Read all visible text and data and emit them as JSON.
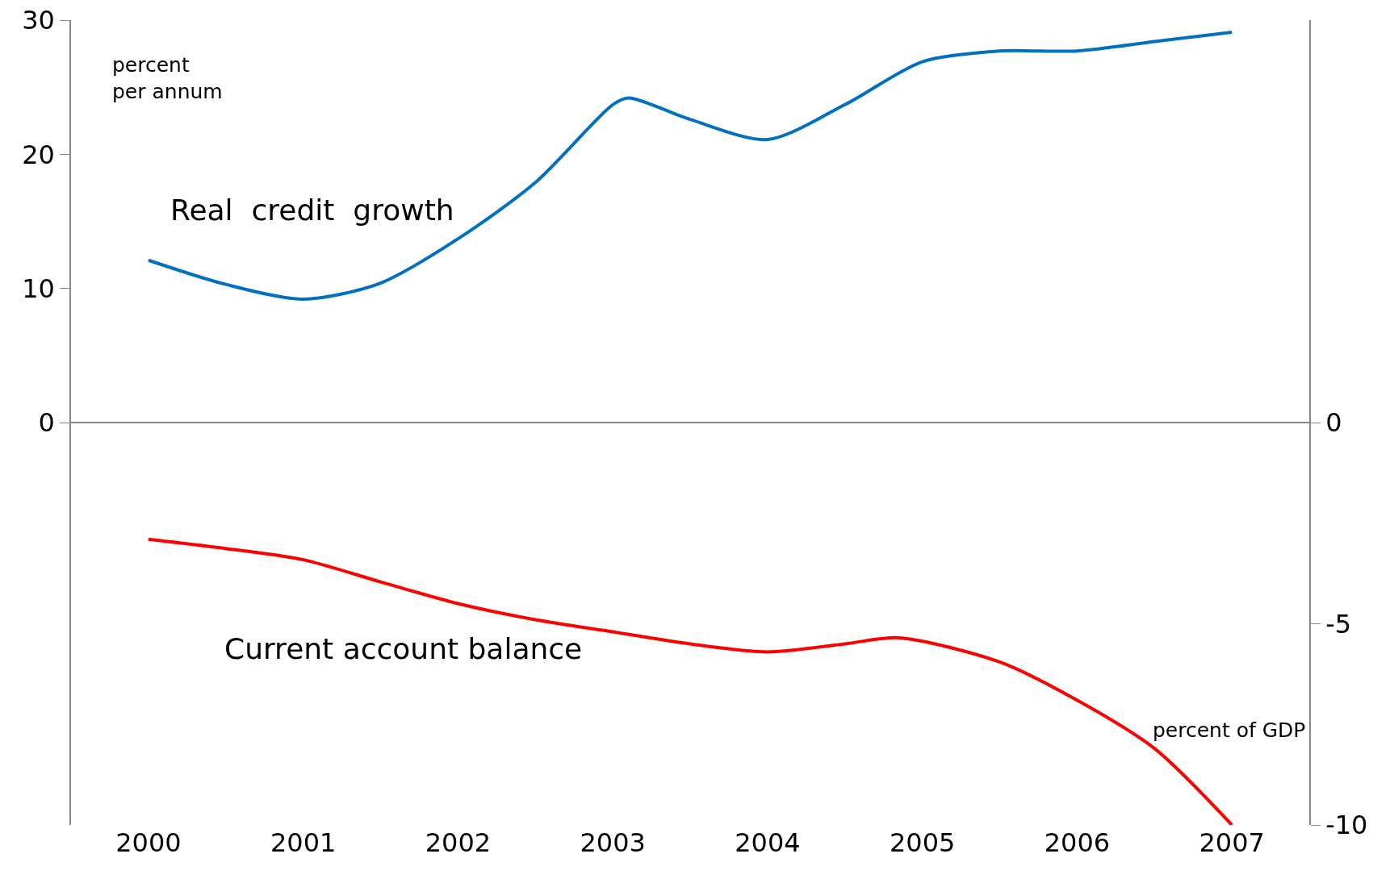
{
  "chart_data": {
    "type": "line",
    "ylabel": "percent\nper annum",
    "y2label": "percent of GDP",
    "xlim": [
      1999.5,
      2007.5
    ],
    "xticks": [
      2000,
      2001,
      2002,
      2003,
      2004,
      2005,
      2006,
      2007
    ],
    "ylim": [
      -30,
      30
    ],
    "yticks": [
      0,
      10,
      20,
      30
    ],
    "y2lim": [
      -10,
      10
    ],
    "y2ticks": [
      0,
      -5,
      -10
    ],
    "legend": false,
    "marker": "none",
    "line_style": "solid",
    "series": [
      {
        "name": "Real  credit  growth",
        "color": "#0070c0",
        "x": [
          2000,
          2000.5,
          2001,
          2001.5,
          2002,
          2002.5,
          2003,
          2003.1,
          2003.5,
          2004,
          2004.5,
          2005,
          2005.5,
          2006,
          2006.5,
          2007
        ],
        "values": [
          12.1,
          10.3,
          9.2,
          10.4,
          13.7,
          17.9,
          23.7,
          24.2,
          22.6,
          21.1,
          23.7,
          26.9,
          27.7,
          27.7,
          28.4,
          29.1
        ]
      },
      {
        "name": "Current account balance",
        "color": "#ff0000",
        "axis": "y2",
        "x": [
          2000,
          2000.5,
          2001,
          2001.5,
          2002,
          2002.5,
          2003,
          2003.5,
          2004,
          2004.5,
          2004.85,
          2005.5,
          2006,
          2006.5,
          2007
        ],
        "values": [
          -2.9,
          -3.13,
          -3.41,
          -3.96,
          -4.5,
          -4.9,
          -5.2,
          -5.5,
          -5.7,
          -5.5,
          -5.35,
          -5.95,
          -6.9,
          -8.1,
          -10.0
        ]
      }
    ]
  }
}
